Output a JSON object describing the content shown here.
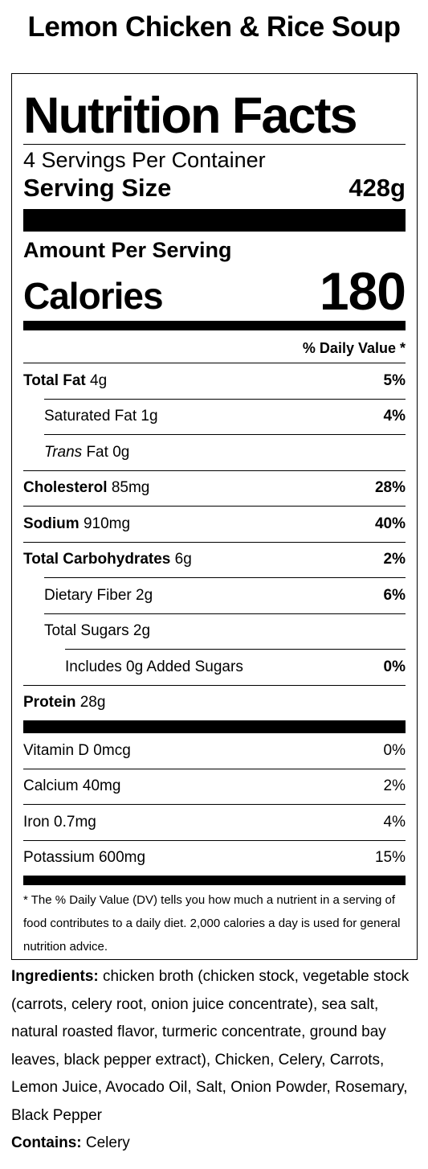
{
  "product": {
    "title": "Lemon Chicken & Rice Soup"
  },
  "label": {
    "heading": "Nutrition Facts",
    "servings_per_container": "4 Servings Per Container",
    "serving_size_label": "Serving Size",
    "serving_size_value": "428g",
    "amount_per_serving": "Amount Per Serving",
    "calories_label": "Calories",
    "calories_value": "180",
    "daily_value_header": "% Daily Value *",
    "nutrients": [
      {
        "name": "Total Fat",
        "amount": "4g",
        "dv": "5%"
      },
      {
        "name": "Saturated Fat",
        "amount": "1g",
        "dv": "4%"
      },
      {
        "name_italic": "Trans",
        "name": "Fat",
        "amount": "0g",
        "dv": ""
      },
      {
        "name": "Cholesterol",
        "amount": "85mg",
        "dv": "28%"
      },
      {
        "name": "Sodium",
        "amount": "910mg",
        "dv": "40%"
      },
      {
        "name": "Total Carbohydrates",
        "amount": "6g",
        "dv": "2%"
      },
      {
        "name": "Dietary Fiber",
        "amount": "2g",
        "dv": "6%"
      },
      {
        "name": "Total Sugars",
        "amount": "2g",
        "dv": ""
      },
      {
        "name": "Includes 0g Added Sugars",
        "amount": "",
        "dv": "0%"
      },
      {
        "name": "Protein",
        "amount": "28g",
        "dv": ""
      }
    ],
    "vitamins": [
      {
        "name": "Vitamin D",
        "amount": "0mcg",
        "dv": "0%"
      },
      {
        "name": "Calcium",
        "amount": "40mg",
        "dv": "2%"
      },
      {
        "name": "Iron",
        "amount": "0.7mg",
        "dv": "4%"
      },
      {
        "name": "Potassium",
        "amount": "600mg",
        "dv": "15%"
      }
    ],
    "footnote": "* The % Daily Value (DV) tells you how much a nutrient in a serving of food contributes to a daily diet. 2,000 calories a day is used for general nutrition advice."
  },
  "ingredients": {
    "label": "Ingredients:",
    "text": "chicken broth (chicken stock, vegetable stock (carrots, celery root, onion juice concentrate), sea salt, natural roasted flavor, turmeric concentrate, ground bay leaves, black pepper extract), Chicken, Celery, Carrots, Lemon Juice, Avocado Oil, Salt, Onion Powder, Rosemary, Black Pepper",
    "contains_label": "Contains:",
    "contains_text": "Celery"
  }
}
